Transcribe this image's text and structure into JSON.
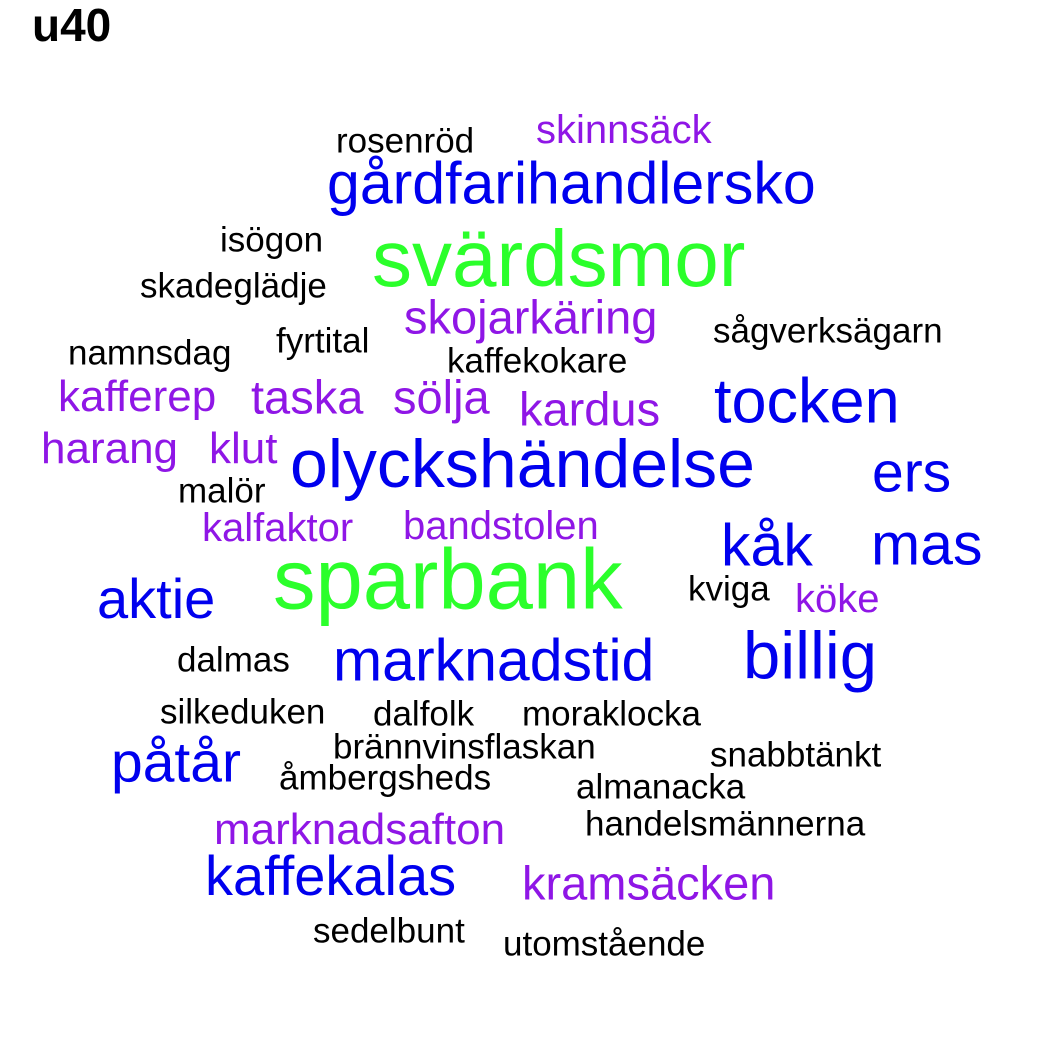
{
  "title": "u40",
  "colors": {
    "large": "#2bff2b",
    "blue": "#0000ee",
    "purple": "#8f16e6",
    "black": "#000000"
  },
  "words": [
    {
      "text": "skinnsäck",
      "color": "purple"
    },
    {
      "text": "rosenröd",
      "color": "black"
    },
    {
      "text": "gårdfarihandlersko",
      "color": "blue"
    },
    {
      "text": "isögon",
      "color": "black"
    },
    {
      "text": "svärdsmor",
      "color": "large"
    },
    {
      "text": "skadeglädje",
      "color": "black"
    },
    {
      "text": "skojarkäring",
      "color": "purple"
    },
    {
      "text": "sågverksägarn",
      "color": "black"
    },
    {
      "text": "namnsdag",
      "color": "black"
    },
    {
      "text": "fyrtital",
      "color": "black"
    },
    {
      "text": "kaffekokare",
      "color": "black"
    },
    {
      "text": "kafferep",
      "color": "purple"
    },
    {
      "text": "taska",
      "color": "purple"
    },
    {
      "text": "sölja",
      "color": "purple"
    },
    {
      "text": "kardus",
      "color": "purple"
    },
    {
      "text": "tocken",
      "color": "blue"
    },
    {
      "text": "harang",
      "color": "purple"
    },
    {
      "text": "klut",
      "color": "purple"
    },
    {
      "text": "olyckshändelse",
      "color": "blue"
    },
    {
      "text": "ers",
      "color": "blue"
    },
    {
      "text": "malör",
      "color": "black"
    },
    {
      "text": "kalfaktor",
      "color": "purple"
    },
    {
      "text": "bandstolen",
      "color": "purple"
    },
    {
      "text": "kåk",
      "color": "blue"
    },
    {
      "text": "mas",
      "color": "blue"
    },
    {
      "text": "aktie",
      "color": "blue"
    },
    {
      "text": "sparbank",
      "color": "large"
    },
    {
      "text": "kviga",
      "color": "black"
    },
    {
      "text": "köke",
      "color": "purple"
    },
    {
      "text": "dalmas",
      "color": "black"
    },
    {
      "text": "marknadstid",
      "color": "blue"
    },
    {
      "text": "billig",
      "color": "blue"
    },
    {
      "text": "silkeduken",
      "color": "black"
    },
    {
      "text": "dalfolk",
      "color": "black"
    },
    {
      "text": "moraklocka",
      "color": "black"
    },
    {
      "text": "påtår",
      "color": "blue"
    },
    {
      "text": "brännvinsflaskan",
      "color": "black"
    },
    {
      "text": "snabbtänkt",
      "color": "black"
    },
    {
      "text": "åmbergsheds",
      "color": "black"
    },
    {
      "text": "almanacka",
      "color": "black"
    },
    {
      "text": "marknadsafton",
      "color": "purple"
    },
    {
      "text": "handelsmännerna",
      "color": "black"
    },
    {
      "text": "kaffekalas",
      "color": "blue"
    },
    {
      "text": "kramsäcken",
      "color": "purple"
    },
    {
      "text": "sedelbunt",
      "color": "black"
    },
    {
      "text": "utomstående",
      "color": "black"
    }
  ]
}
